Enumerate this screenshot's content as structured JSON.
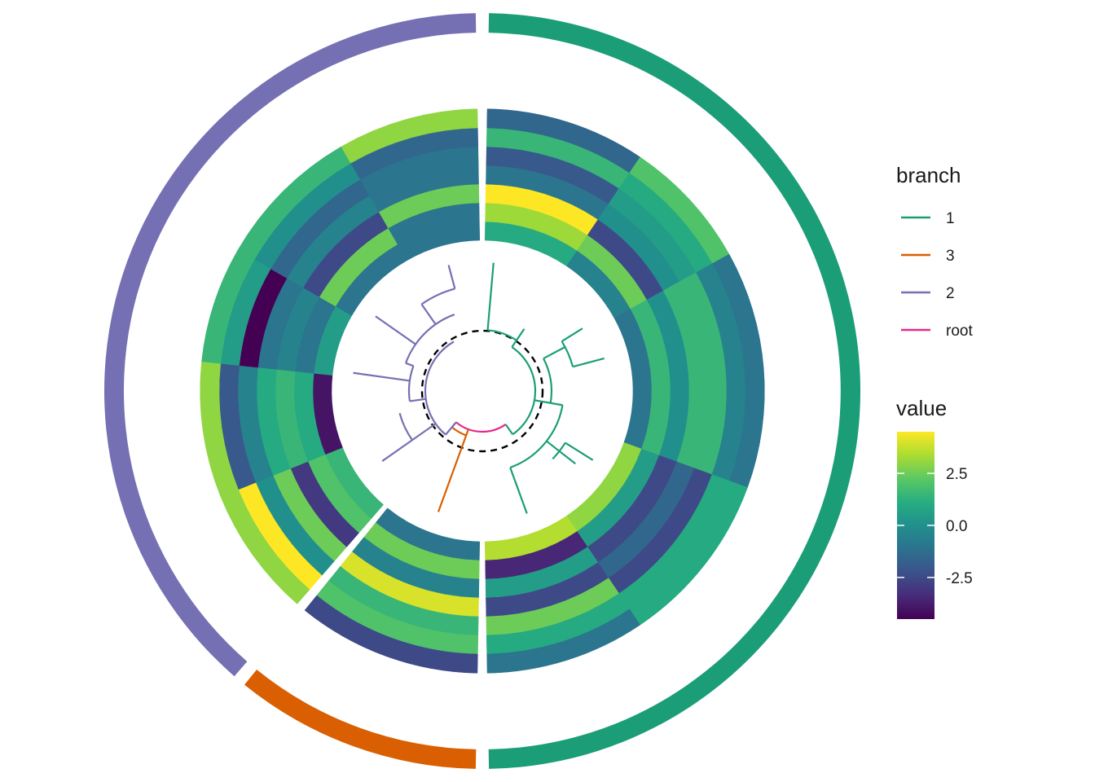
{
  "chart_data": {
    "type": "heatmap",
    "layout": "circular",
    "description_of_structure": "circular dendrogram with 4 branches, 7-ring circular heatmap and outer branch annotation ring",
    "palette": {
      "branch_colors": {
        "1": "#1b9e77",
        "3": "#d95f02",
        "2": "#7570b3",
        "root": "#e7298a"
      },
      "value_colormap": "viridis"
    },
    "value_range": [
      -4.5,
      4.5
    ],
    "legend_branch": {
      "title": "branch",
      "entries": [
        {
          "label": "1",
          "color": "#1b9e77"
        },
        {
          "label": "3",
          "color": "#d95f02"
        },
        {
          "label": "2",
          "color": "#7570b3"
        },
        {
          "label": "root",
          "color": "#e7298a"
        }
      ]
    },
    "legend_value": {
      "title": "value",
      "ticks": [
        2.5,
        0.0,
        -2.5
      ],
      "tick_labels": [
        "2.5",
        "0.0",
        "-2.5"
      ]
    },
    "sectors": [
      {
        "branch": "1",
        "start_deg": 1,
        "end_deg": 179
      },
      {
        "branch": "3",
        "start_deg": 181,
        "end_deg": 219
      },
      {
        "branch": "2",
        "start_deg": 221,
        "end_deg": 359
      }
    ],
    "wedges": [
      {
        "branch": "1",
        "start": 1,
        "end": 34,
        "values": [
          1.0,
          3.2,
          4.5,
          -1.0,
          -2.0,
          1.5,
          -1.5
        ]
      },
      {
        "branch": "1",
        "start": 34,
        "end": 61,
        "values": [
          -0.5,
          2.5,
          -2.5,
          0.0,
          0.5,
          1.0,
          2.0
        ]
      },
      {
        "branch": "1",
        "start": 61,
        "end": 110,
        "values": [
          -1.0,
          1.5,
          0.0,
          1.5,
          1.5,
          -0.5,
          -1.0
        ]
      },
      {
        "branch": "1",
        "start": 110,
        "end": 146,
        "values": [
          3.0,
          0.5,
          -2.5,
          -1.5,
          -2.5,
          1.0,
          1.0
        ]
      },
      {
        "branch": "1",
        "start": 146,
        "end": 179,
        "values": [
          3.5,
          -3.5,
          0.5,
          -2.5,
          2.5,
          1.0,
          -1.0
        ]
      },
      {
        "branch": "3",
        "start": 181,
        "end": 219,
        "values": [
          -1.0,
          2.5,
          -0.5,
          4.0,
          1.5,
          2.0,
          -2.5
        ]
      },
      {
        "branch": "2",
        "start": 221,
        "end": 248,
        "values": [
          1.5,
          2.0,
          -3.0,
          2.5,
          0.0,
          4.5,
          3.0
        ]
      },
      {
        "branch": "2",
        "start": 248,
        "end": 276,
        "values": [
          -4.0,
          1.0,
          1.5,
          1.0,
          -0.5,
          -2.0,
          3.0
        ]
      },
      {
        "branch": "2",
        "start": 276,
        "end": 300,
        "values": [
          0.5,
          -1.0,
          -0.5,
          -1.0,
          -4.5,
          0.5,
          1.5
        ]
      },
      {
        "branch": "2",
        "start": 300,
        "end": 330,
        "values": [
          -1.0,
          2.5,
          -2.5,
          -0.5,
          -1.5,
          0.0,
          1.5
        ]
      },
      {
        "branch": "2",
        "start": 330,
        "end": 359,
        "values": [
          -1.0,
          -1.0,
          2.5,
          -1.0,
          -1.0,
          -1.5,
          3.0
        ]
      }
    ]
  }
}
